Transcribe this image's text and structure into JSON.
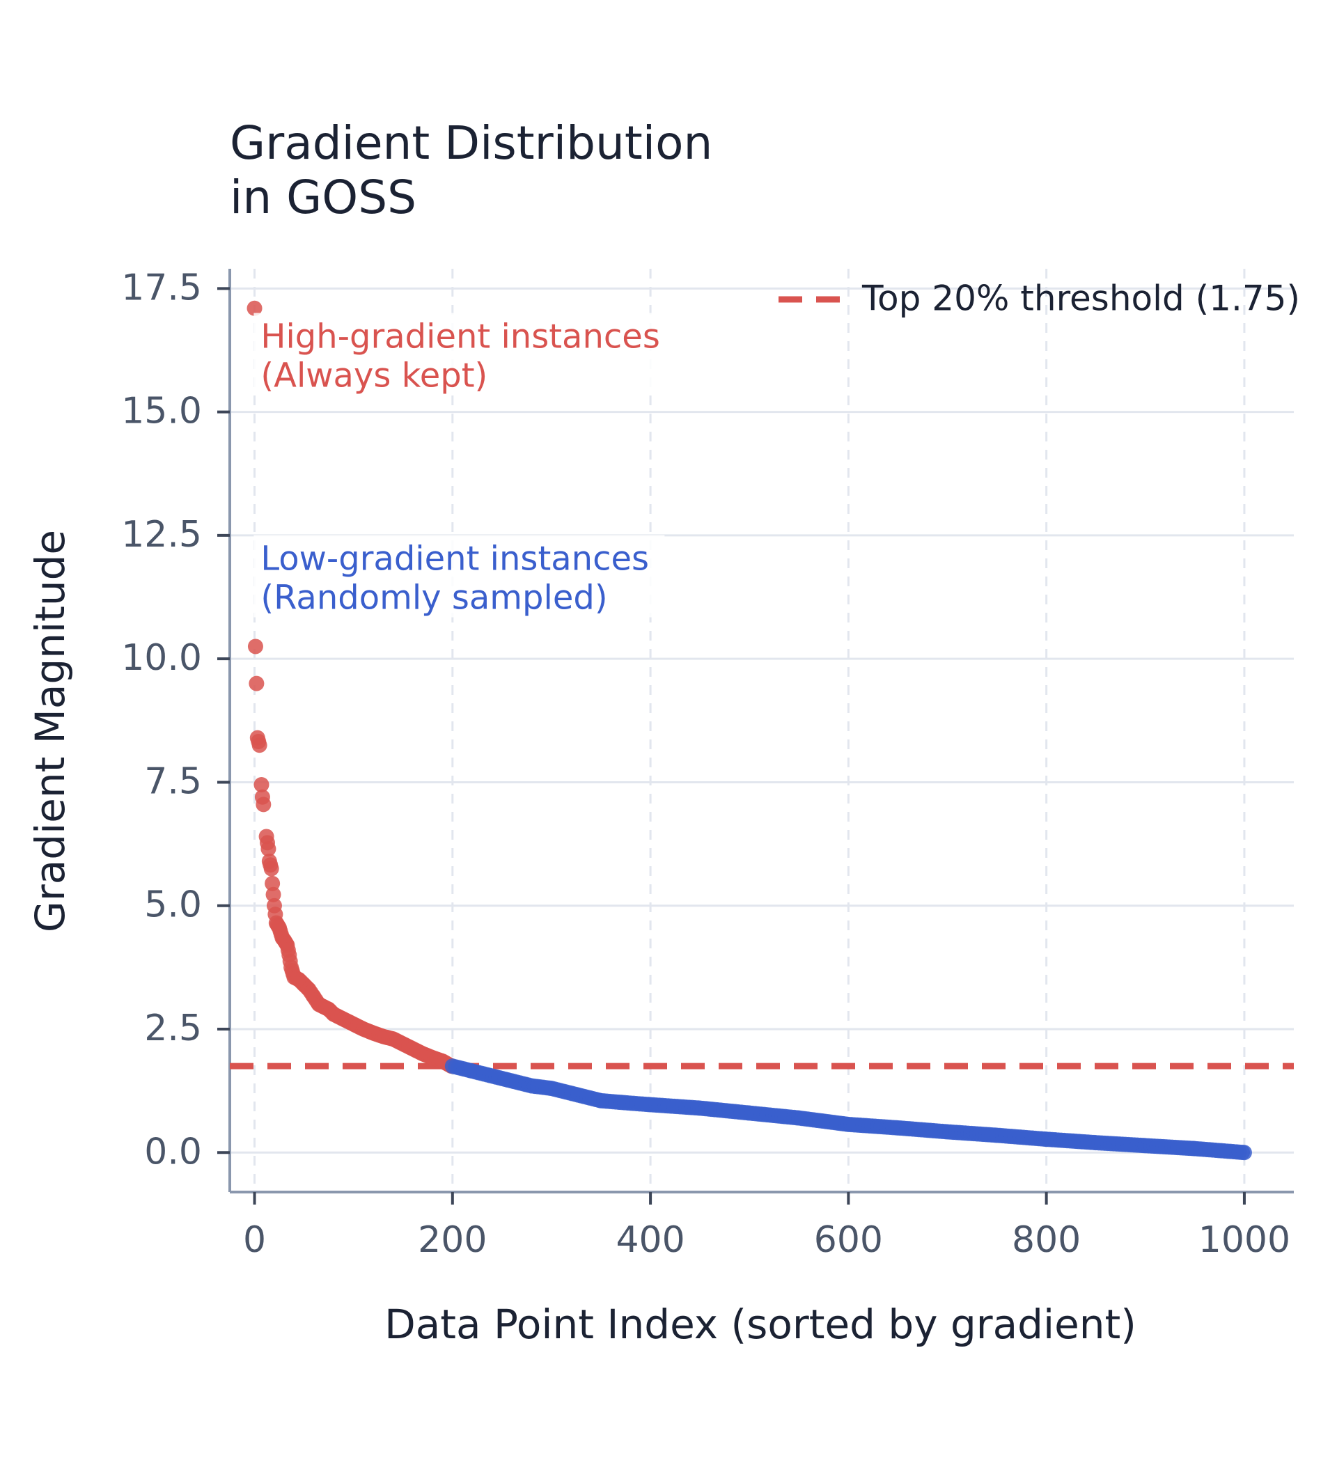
{
  "chart_data": {
    "type": "scatter",
    "title_lines": [
      "Gradient Distribution",
      "in GOSS"
    ],
    "xlabel": "Data Point Index (sorted by gradient)",
    "ylabel": "Gradient Magnitude",
    "xlim": [
      -25,
      1050
    ],
    "ylim": [
      -0.8,
      17.9
    ],
    "xticks": [
      0,
      200,
      400,
      600,
      800,
      1000
    ],
    "xtick_labels": [
      "0",
      "200",
      "400",
      "600",
      "800",
      "1000"
    ],
    "yticks": [
      0,
      2.5,
      5,
      7.5,
      10,
      12.5,
      15,
      17.5
    ],
    "ytick_labels": [
      "0.0",
      "2.5",
      "5.0",
      "7.5",
      "10.0",
      "12.5",
      "15.0",
      "17.5"
    ],
    "grid": true,
    "legend": {
      "position": "top-right",
      "entries": [
        "Top 20% threshold (1.75)"
      ]
    },
    "threshold": {
      "y": 1.75,
      "label": "Top 20% threshold (1.75)",
      "color": "#d9534f"
    },
    "series": [
      {
        "role": "high-gradient",
        "color": "#d9534f",
        "x": [
          0,
          1,
          2,
          3,
          5,
          7,
          8,
          9,
          12,
          14,
          15,
          17,
          18,
          20,
          22,
          25,
          28,
          30,
          33,
          35,
          37,
          40,
          45,
          50,
          55,
          60,
          65,
          70,
          75,
          80,
          90,
          100,
          110,
          120,
          130,
          140,
          150,
          160,
          170,
          180,
          190,
          199
        ],
        "y": [
          17.1,
          10.25,
          9.5,
          8.4,
          8.25,
          7.45,
          7.2,
          7.05,
          6.4,
          6.15,
          5.9,
          5.75,
          5.45,
          5.0,
          4.65,
          4.55,
          4.35,
          4.3,
          4.2,
          4.0,
          3.75,
          3.55,
          3.5,
          3.4,
          3.3,
          3.15,
          3.0,
          2.95,
          2.9,
          2.8,
          2.7,
          2.6,
          2.5,
          2.42,
          2.35,
          2.3,
          2.2,
          2.1,
          2.0,
          1.92,
          1.85,
          1.75
        ]
      },
      {
        "role": "low-gradient",
        "color": "#3a5fcd",
        "x": [
          200,
          220,
          250,
          280,
          300,
          330,
          350,
          380,
          400,
          450,
          500,
          550,
          600,
          650,
          700,
          750,
          800,
          850,
          900,
          950,
          1000
        ],
        "y": [
          1.75,
          1.65,
          1.5,
          1.35,
          1.3,
          1.15,
          1.05,
          1.0,
          0.97,
          0.9,
          0.8,
          0.7,
          0.57,
          0.5,
          0.42,
          0.35,
          0.27,
          0.2,
          0.14,
          0.08,
          0.0
        ]
      }
    ],
    "annotations": [
      {
        "lines": [
          "High-gradient instances",
          "(Always kept)"
        ],
        "color": "#d9534f",
        "x": 2,
        "y": 16.3
      },
      {
        "lines": [
          "Low-gradient instances",
          "(Randomly sampled)"
        ],
        "color": "#3a5fcd",
        "x": 2,
        "y": 11.8
      }
    ]
  }
}
